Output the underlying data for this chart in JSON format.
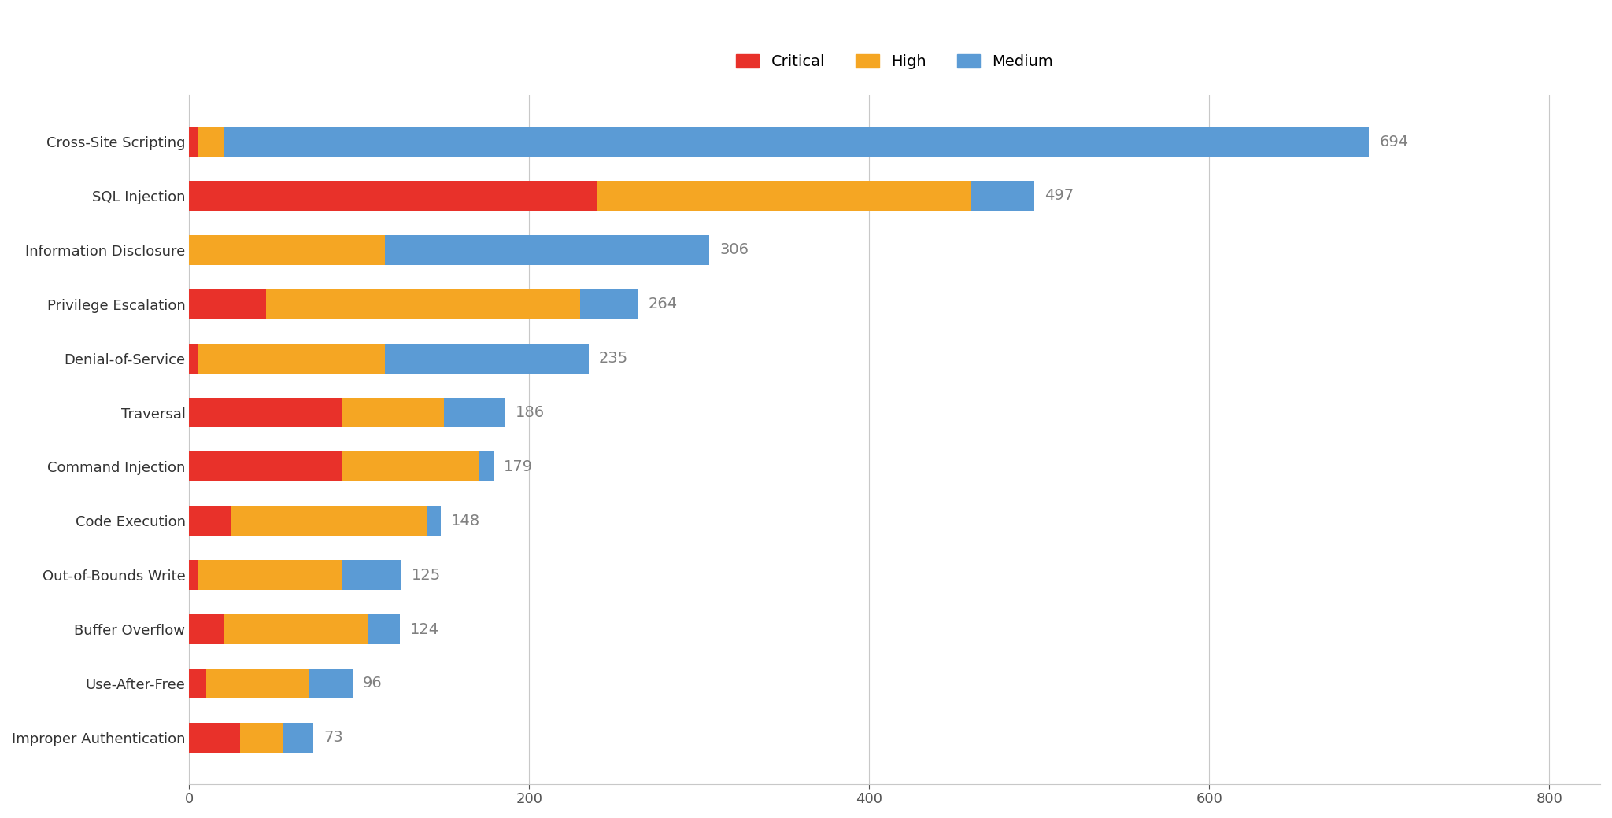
{
  "categories": [
    "Cross-Site Scripting",
    "SQL Injection",
    "Information Disclosure",
    "Privilege Escalation",
    "Denial-of-Service",
    "Traversal",
    "Command Injection",
    "Code Execution",
    "Out-of-Bounds Write",
    "Buffer Overflow",
    "Use-After-Free",
    "Improper Authentication"
  ],
  "critical": [
    5,
    240,
    0,
    45,
    5,
    90,
    90,
    25,
    5,
    20,
    10,
    30
  ],
  "high": [
    15,
    220,
    115,
    185,
    110,
    60,
    80,
    115,
    85,
    85,
    60,
    25
  ],
  "medium": [
    674,
    37,
    191,
    34,
    120,
    36,
    9,
    8,
    35,
    19,
    26,
    18
  ],
  "totals": [
    694,
    497,
    306,
    264,
    235,
    186,
    179,
    148,
    125,
    124,
    96,
    73
  ],
  "colors": {
    "critical": "#E8312A",
    "high": "#F5A623",
    "medium": "#5B9BD5"
  },
  "xlim": [
    0,
    830
  ],
  "xticks": [
    0,
    200,
    400,
    600,
    800
  ],
  "background_color": "#FFFFFF",
  "label_color": "#808080",
  "label_fontsize": 14,
  "tick_fontsize": 13,
  "category_fontsize": 13,
  "bar_height": 0.55,
  "legend_fontsize": 14,
  "grid_color": "#C8C8C8",
  "spine_color": "#C8C8C8"
}
